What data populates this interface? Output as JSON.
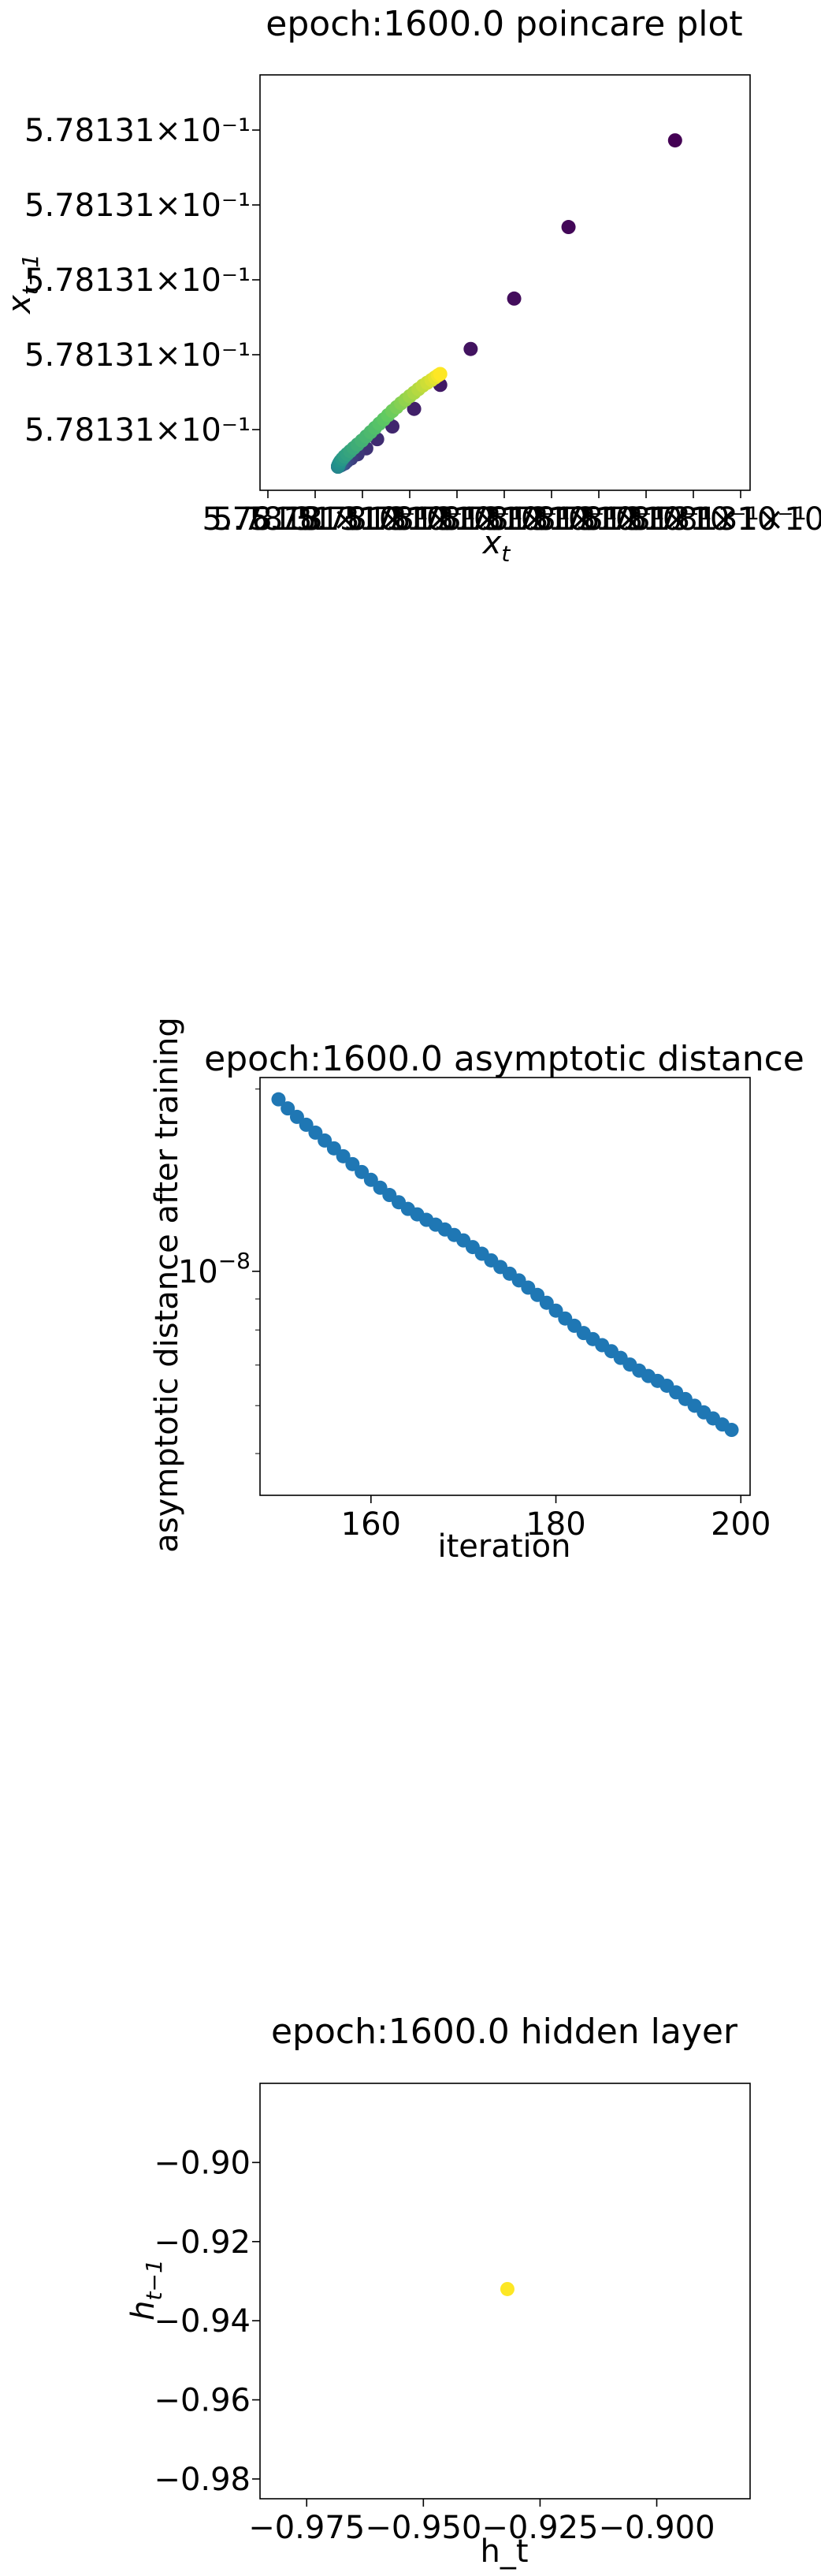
{
  "chart_data": [
    {
      "type": "scatter",
      "title": "epoch:1600.0 poincare plot",
      "xlabel": "x",
      "xlabel_sub": "t",
      "ylabel": "x",
      "ylabel_sub": "t−1",
      "colormap": "viridis",
      "xtick_labels": [
        "5.7813",
        "5.78131×10⁻¹",
        "5.78131×10⁻¹",
        "5.78131×10⁻¹",
        "5.78131×10⁻¹",
        "5.78131×10⁻¹",
        "5.78131×10⁻¹",
        "5.78131×10⁻¹",
        "5.78131×10⁻¹",
        "5.78131×10⁻¹",
        "5.78131×10⁻¹"
      ],
      "ytick_labels": [
        "5.78131×10⁻¹",
        "5.78131×10⁻¹",
        "5.78131×10⁻¹",
        "5.78131×10⁻¹",
        "5.78131×10⁻¹"
      ],
      "points": [
        [
          0.9,
          0.926
        ],
        [
          0.655,
          0.68
        ],
        [
          0.53,
          0.477
        ],
        [
          0.43,
          0.334
        ],
        [
          0.36,
          0.232
        ],
        [
          0.3,
          0.164
        ],
        [
          0.25,
          0.114
        ],
        [
          0.215,
          0.078
        ],
        [
          0.19,
          0.052
        ],
        [
          0.17,
          0.035
        ],
        [
          0.155,
          0.023
        ],
        [
          0.145,
          0.015
        ],
        [
          0.14,
          0.009
        ],
        [
          0.135,
          0.006
        ],
        [
          0.132,
          0.004
        ],
        [
          0.13,
          0.003
        ],
        [
          0.128,
          0.002
        ],
        [
          0.127,
          0.002
        ],
        [
          0.126,
          0.001
        ],
        [
          0.126,
          0.001
        ],
        [
          0.125,
          0.001
        ],
        [
          0.125,
          0.001
        ],
        [
          0.125,
          0.0
        ],
        [
          0.125,
          0.0
        ],
        [
          0.125,
          0.0
        ],
        [
          0.126,
          0.005
        ],
        [
          0.128,
          0.01
        ],
        [
          0.131,
          0.016
        ],
        [
          0.135,
          0.022
        ],
        [
          0.14,
          0.029
        ],
        [
          0.146,
          0.036
        ],
        [
          0.153,
          0.044
        ],
        [
          0.161,
          0.053
        ],
        [
          0.17,
          0.063
        ],
        [
          0.18,
          0.074
        ],
        [
          0.19,
          0.086
        ],
        [
          0.2,
          0.098
        ],
        [
          0.21,
          0.11
        ],
        [
          0.22,
          0.122
        ],
        [
          0.23,
          0.134
        ],
        [
          0.24,
          0.146
        ],
        [
          0.25,
          0.158
        ],
        [
          0.26,
          0.169
        ],
        [
          0.27,
          0.18
        ],
        [
          0.28,
          0.19
        ],
        [
          0.29,
          0.2
        ],
        [
          0.3,
          0.21
        ],
        [
          0.31,
          0.22
        ],
        [
          0.32,
          0.23
        ],
        [
          0.33,
          0.238
        ],
        [
          0.34,
          0.246
        ],
        [
          0.348,
          0.253
        ],
        [
          0.355,
          0.259
        ],
        [
          0.36,
          0.263
        ]
      ]
    },
    {
      "type": "scatter",
      "title": "epoch:1600.0 asymptotic distance",
      "xlabel": "iteration",
      "ylabel": "asymptotic distance after training",
      "yscale": "log",
      "color": "#1f77b4",
      "xlim": [
        148,
        201
      ],
      "ylim_log10": [
        -8.37,
        -7.68
      ],
      "xticks": [
        160,
        180,
        200
      ],
      "ytick_label": "10",
      "ytick_exp": "−8",
      "ytick_value_log10": -8.0,
      "x": [
        150,
        151,
        152,
        153,
        154,
        155,
        156,
        157,
        158,
        159,
        160,
        161,
        162,
        163,
        164,
        165,
        166,
        167,
        168,
        169,
        170,
        171,
        172,
        173,
        174,
        175,
        176,
        177,
        178,
        179,
        180,
        181,
        182,
        183,
        184,
        185,
        186,
        187,
        188,
        189,
        190,
        191,
        192,
        193,
        194,
        195,
        196,
        197,
        198,
        199
      ],
      "y_log10": [
        -7.716,
        -7.731,
        -7.745,
        -7.758,
        -7.771,
        -7.784,
        -7.797,
        -7.81,
        -7.823,
        -7.836,
        -7.849,
        -7.862,
        -7.874,
        -7.886,
        -7.897,
        -7.906,
        -7.915,
        -7.923,
        -7.931,
        -7.94,
        -7.949,
        -7.96,
        -7.971,
        -7.982,
        -7.993,
        -8.004,
        -8.015,
        -8.027,
        -8.039,
        -8.052,
        -8.065,
        -8.078,
        -8.09,
        -8.102,
        -8.112,
        -8.122,
        -8.132,
        -8.143,
        -8.154,
        -8.164,
        -8.173,
        -8.181,
        -8.189,
        -8.2,
        -8.211,
        -8.222,
        -8.233,
        -8.243,
        -8.253,
        -8.262
      ]
    },
    {
      "type": "scatter",
      "title": "epoch:1600.0 hidden layer",
      "xlabel": "h_t",
      "ylabel": "h",
      "ylabel_sub": "t−1",
      "color": "#fde725",
      "xlim": [
        -0.985,
        -0.88
      ],
      "ylim": [
        -0.985,
        -0.88
      ],
      "xticks": [
        -0.975,
        -0.95,
        -0.925,
        -0.9
      ],
      "yticks": [
        -0.9,
        -0.92,
        -0.94,
        -0.96,
        -0.98
      ],
      "xtick_labels": [
        "−0.975",
        "−0.950",
        "−0.925",
        "−0.900"
      ],
      "ytick_labels": [
        "−0.90",
        "−0.92",
        "−0.94",
        "−0.96",
        "−0.98"
      ],
      "points": [
        [
          -0.932,
          -0.932
        ]
      ]
    }
  ]
}
